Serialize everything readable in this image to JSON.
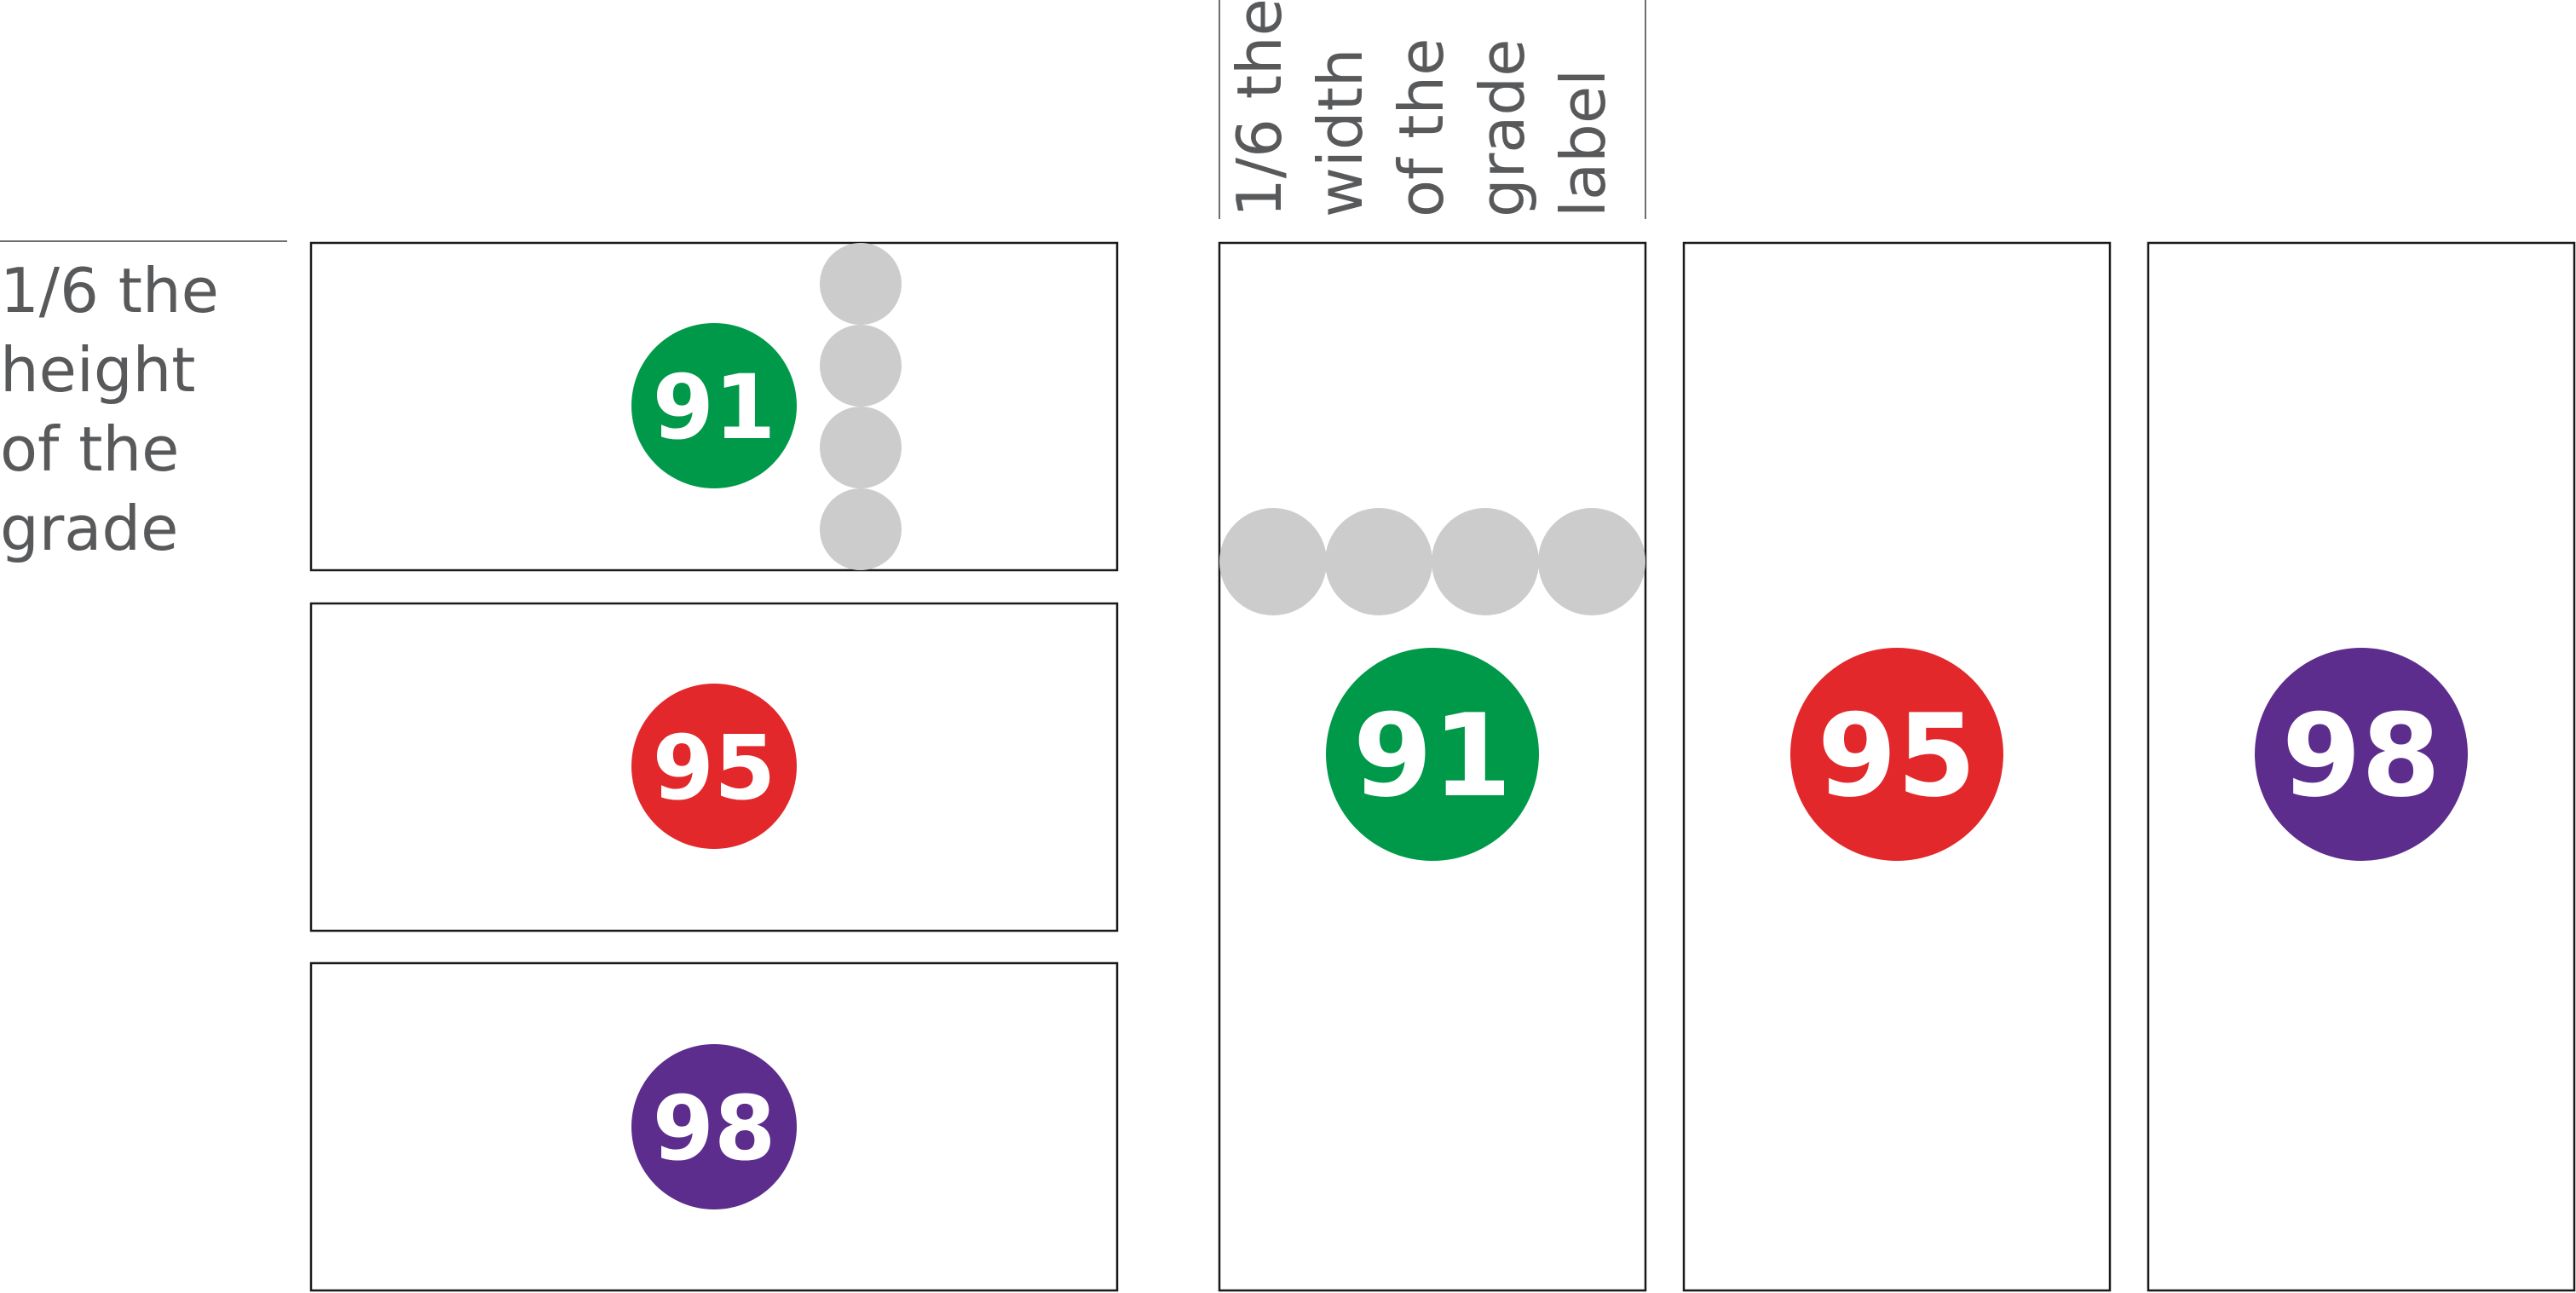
{
  "notes": {
    "height_note": [
      "1/6 the",
      "height",
      "of the",
      "grade"
    ],
    "width_note": [
      "1/6 the",
      "width",
      "of the",
      "grade",
      "label"
    ]
  },
  "colors": {
    "green": "#00994a",
    "red": "#e2282b",
    "purple": "#5c2d8c",
    "spacer": "#cccccc",
    "panel_border": "#1a1a1a",
    "note_text": "#58595b"
  },
  "landscape_cards": [
    {
      "grade": "91",
      "color": "green"
    },
    {
      "grade": "95",
      "color": "red"
    },
    {
      "grade": "98",
      "color": "purple"
    }
  ],
  "portrait_cards": [
    {
      "grade": "91",
      "color": "green"
    },
    {
      "grade": "95",
      "color": "red"
    },
    {
      "grade": "98",
      "color": "purple"
    }
  ]
}
